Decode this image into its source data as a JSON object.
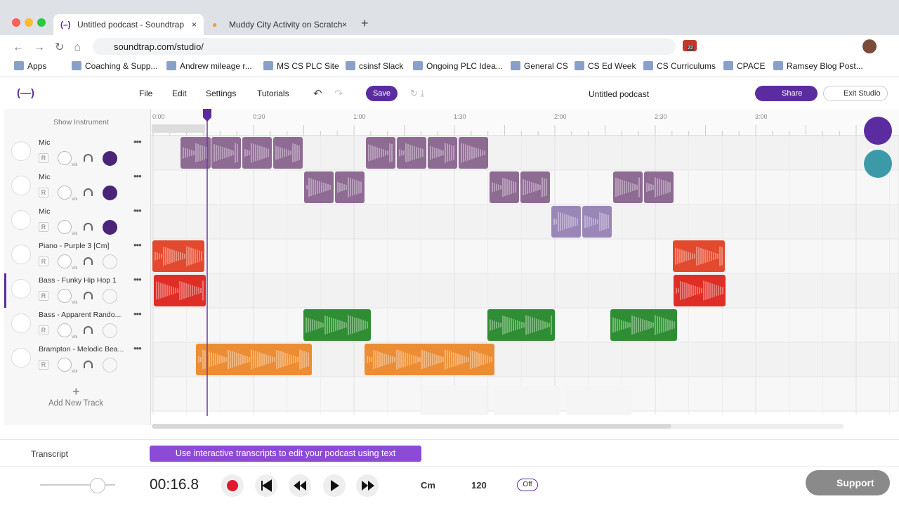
{
  "browser": {
    "tabs": [
      "Untitled podcast - Soundtrap",
      "Muddy City Activity on Scratch"
    ],
    "url": "soundtrap.com/studio/",
    "extension_badge": "22",
    "bookmarks": [
      "Apps",
      "Coaching & Supp...",
      "Andrew mileage r...",
      "MS CS PLC Site",
      "csinsf Slack",
      "Ongoing PLC Idea...",
      "General CS",
      "CS Ed Week",
      "CS Curriculums",
      "CPACE",
      "Ramsey Blog Post..."
    ]
  },
  "toolbar": {
    "menu": [
      "File",
      "Edit",
      "Settings",
      "Tutorials"
    ],
    "save": "Save",
    "project_title": "Untitled podcast",
    "share": "Share",
    "exit": "Exit Studio"
  },
  "timeline": {
    "show_instrument": "Show Instrument",
    "ruler": [
      "0:00",
      "0:30",
      "1:00",
      "1:30",
      "2:00",
      "2:30",
      "3:00"
    ]
  },
  "tracks": {
    "record_button": "R",
    "knob_label": "Vol",
    "names": [
      "Mic",
      "Mic",
      "Mic",
      "Piano - Purple 3 [Cm]",
      "Bass - Funky Hip Hop 1",
      "Bass - Apparent Rando...",
      "Brampton - Melodic Bea..."
    ]
  },
  "add_track": "Add New Track",
  "transcript": {
    "label": "Transcript",
    "banner": "Use interactive transcripts to edit your podcast using text"
  },
  "transport": {
    "time": "00:16.8",
    "key": "Cm",
    "tempo": "120",
    "metronome": "Off",
    "support": "Support"
  }
}
